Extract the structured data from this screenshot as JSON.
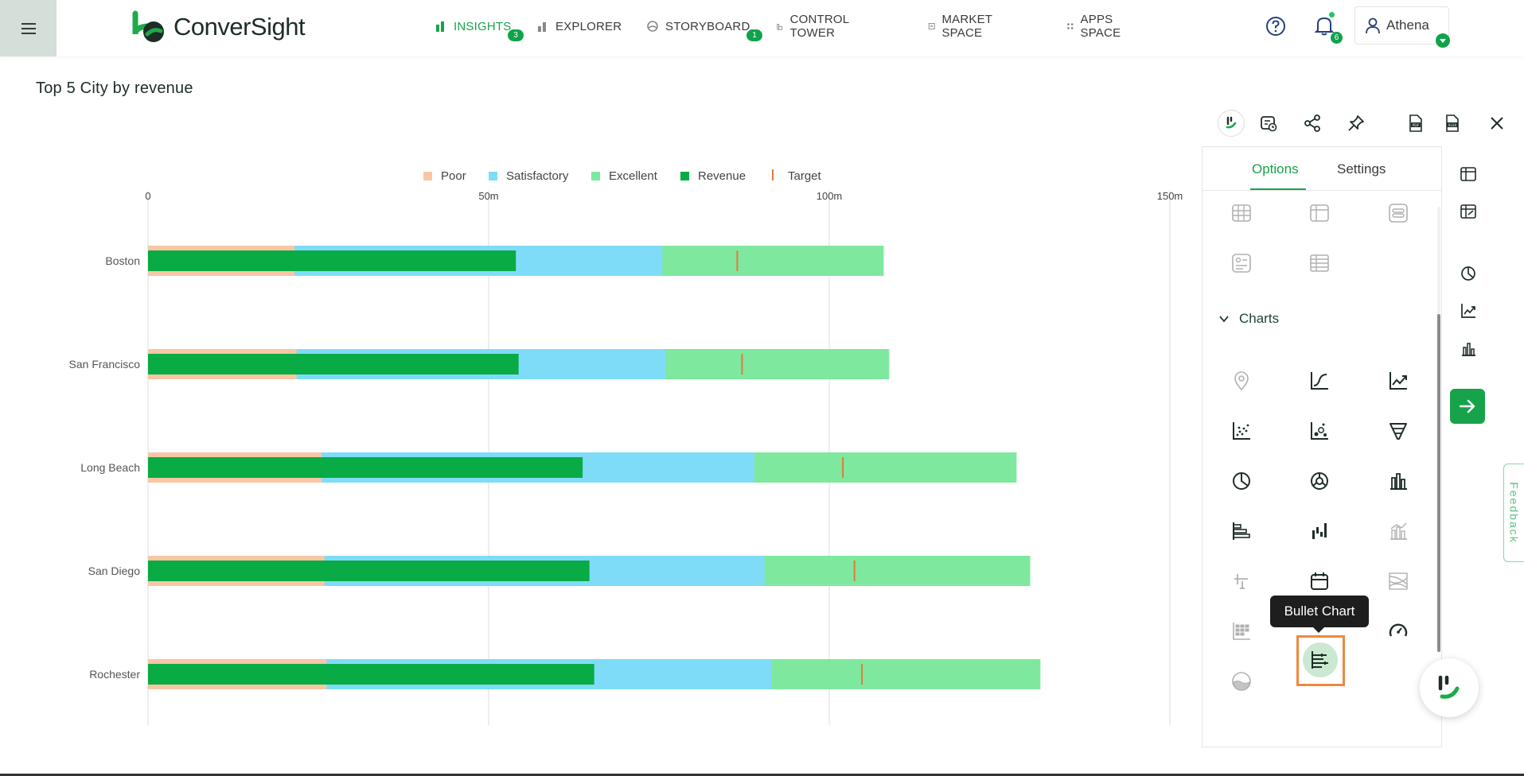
{
  "app": {
    "logo_text": "ConverSight",
    "brand_color": "#0fa34a"
  },
  "nav": {
    "items": [
      {
        "label": "INSIGHTS",
        "icon": "bar-chart-icon",
        "badge": "3",
        "active": true
      },
      {
        "label": "EXPLORER",
        "icon": "explorer-icon"
      },
      {
        "label": "STORYBOARD",
        "icon": "storyboard-icon",
        "badge": "1"
      },
      {
        "label": "CONTROL TOWER",
        "icon": "control-tower-icon"
      },
      {
        "label": "MARKET SPACE",
        "icon": "market-space-icon"
      },
      {
        "label": "APPS SPACE",
        "icon": "apps-grid-icon"
      }
    ]
  },
  "header": {
    "notification_count": "6",
    "user_name": "Athena"
  },
  "page": {
    "title": "Top 5 City by revenue"
  },
  "chart_data": {
    "type": "bullet",
    "title": "Top 5 City by revenue",
    "legend": [
      "Poor",
      "Satisfactory",
      "Excellent",
      "Revenue",
      "Target"
    ],
    "legend_position": "top-center",
    "axis_position": "top",
    "colors": {
      "Poor": "#f9c6a4",
      "Satisfactory": "#7fdcf8",
      "Excellent": "#7fe89f",
      "Revenue": "#08ab44",
      "Target": "#e07b39"
    },
    "xlim": [
      0,
      150
    ],
    "x_unit": "m",
    "ticks": [
      "0",
      "50m",
      "100m",
      "150m"
    ],
    "tick_values": [
      0,
      50,
      100,
      150
    ],
    "grid": true,
    "categories": [
      "Boston",
      "San Francisco",
      "Long Beach",
      "San Diego",
      "Rochester"
    ],
    "series": [
      {
        "name": "Poor",
        "values": [
          21.5,
          21.8,
          25.5,
          25.9,
          26.2
        ]
      },
      {
        "name": "Satisfactory",
        "values": [
          75.5,
          76.0,
          89.0,
          90.5,
          91.5
        ]
      },
      {
        "name": "Excellent",
        "values": [
          108.0,
          108.8,
          127.5,
          129.5,
          131.0
        ]
      },
      {
        "name": "Revenue",
        "values": [
          54.0,
          54.4,
          63.8,
          64.8,
          65.5
        ]
      },
      {
        "name": "Target",
        "values": [
          86.5,
          87.2,
          102.0,
          103.7,
          104.8
        ]
      }
    ]
  },
  "toolbar": {
    "icons": [
      "conversight-assistant-icon",
      "schedule-report-icon",
      "share-icon",
      "pin-icon",
      "pdf-export-icon",
      "xlsx-export-icon",
      "close-icon"
    ]
  },
  "options_panel": {
    "tabs": [
      "Options",
      "Settings"
    ],
    "active_tab": "Options",
    "table_icons": [
      "table-grid-icon",
      "pivot-table-icon",
      "list-card-icon",
      "kpi-card-icon",
      "data-table-icon"
    ],
    "section_label": "Charts",
    "chart_icons": [
      "map-pin-icon",
      "line-curve-icon",
      "trend-line-icon",
      "scatter-plot-icon",
      "bubble-chart-icon",
      "funnel-chart-icon",
      "pie-chart-icon",
      "donut-chart-icon",
      "column-chart-icon",
      "horizontal-bar-icon",
      "waterfall-chart-icon",
      "combo-chart-icon",
      "error-bar-icon",
      "calendar-heatmap-icon",
      "sankey-icon",
      "heatmap-grid-icon",
      "bullet-chart-icon",
      "gauge-icon",
      "liquid-fill-icon"
    ],
    "tooltip": "Bullet Chart"
  },
  "rail": {
    "icons": [
      "table-view-icon",
      "pivot-view-icon",
      "pie-view-icon",
      "line-view-icon",
      "bar-view-icon"
    ]
  },
  "feedback_label": "Feedback"
}
